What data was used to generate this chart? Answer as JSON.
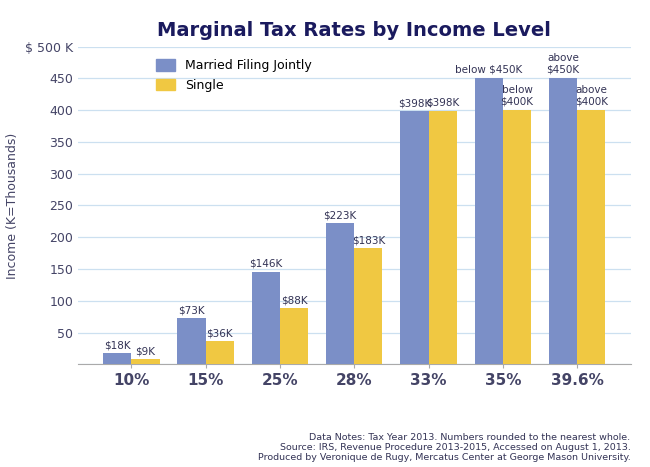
{
  "title": "Marginal Tax Rates by Income Level",
  "categories": [
    "10%",
    "15%",
    "25%",
    "28%",
    "33%",
    "35%",
    "39.6%"
  ],
  "married_values": [
    18,
    73,
    146,
    223,
    398,
    450,
    450
  ],
  "single_values": [
    9,
    36,
    88,
    183,
    398,
    400,
    400
  ],
  "married_labels": [
    "$18K",
    "$73K",
    "$146K",
    "$223K",
    "$398K",
    "below $450K",
    "above\n$450K"
  ],
  "single_labels": [
    "$9K",
    "$36K",
    "$88K",
    "$183K",
    "$398K",
    "below\n$400K",
    "above\n$400K"
  ],
  "married_color": "#7b8fc7",
  "single_color": "#f0c842",
  "ylabel": "Income (K=Thousands)",
  "ylim": [
    0,
    500
  ],
  "yticks": [
    0,
    50,
    100,
    150,
    200,
    250,
    300,
    350,
    400,
    450,
    500
  ],
  "footnote": "Data Notes: Tax Year 2013. Numbers rounded to the nearest whole.\nSource: IRS, Revenue Procedure 2013-2015, Accessed on August 1, 2013.\nProduced by Veronique de Rugy, Mercatus Center at George Mason University.",
  "bar_width": 0.38,
  "legend_married": "Married Filing Jointly",
  "legend_single": "Single",
  "background_color": "#ffffff",
  "grid_color": "#cce0f0",
  "title_color": "#1a1a5e",
  "tick_color": "#444466",
  "label_color": "#333355"
}
